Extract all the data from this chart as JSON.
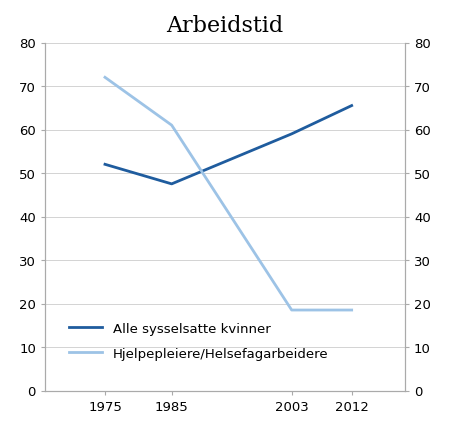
{
  "title": "Arbeidstid",
  "x_values": [
    1975,
    1985,
    2003,
    2012
  ],
  "x_labels": [
    "1975",
    "1985",
    "2003",
    "2012"
  ],
  "series": [
    {
      "label": "Alle sysselsatte kvinner",
      "values": [
        52,
        47.5,
        59,
        65.5
      ],
      "color": "#1f5c9e",
      "linewidth": 2.0
    },
    {
      "label": "Hjelpepleiere/Helsefagarbeidere",
      "values": [
        72,
        61,
        18.5,
        18.5
      ],
      "color": "#9dc3e6",
      "linewidth": 2.0
    }
  ],
  "ylim": [
    0,
    80
  ],
  "yticks": [
    0,
    10,
    20,
    30,
    40,
    50,
    60,
    70,
    80
  ],
  "xlim": [
    1966,
    2020
  ],
  "background_color": "#ffffff",
  "title_fontsize": 16,
  "legend_fontsize": 9.5,
  "tick_fontsize": 9.5,
  "spine_color": "#aaaaaa",
  "grid_color": "#cccccc"
}
